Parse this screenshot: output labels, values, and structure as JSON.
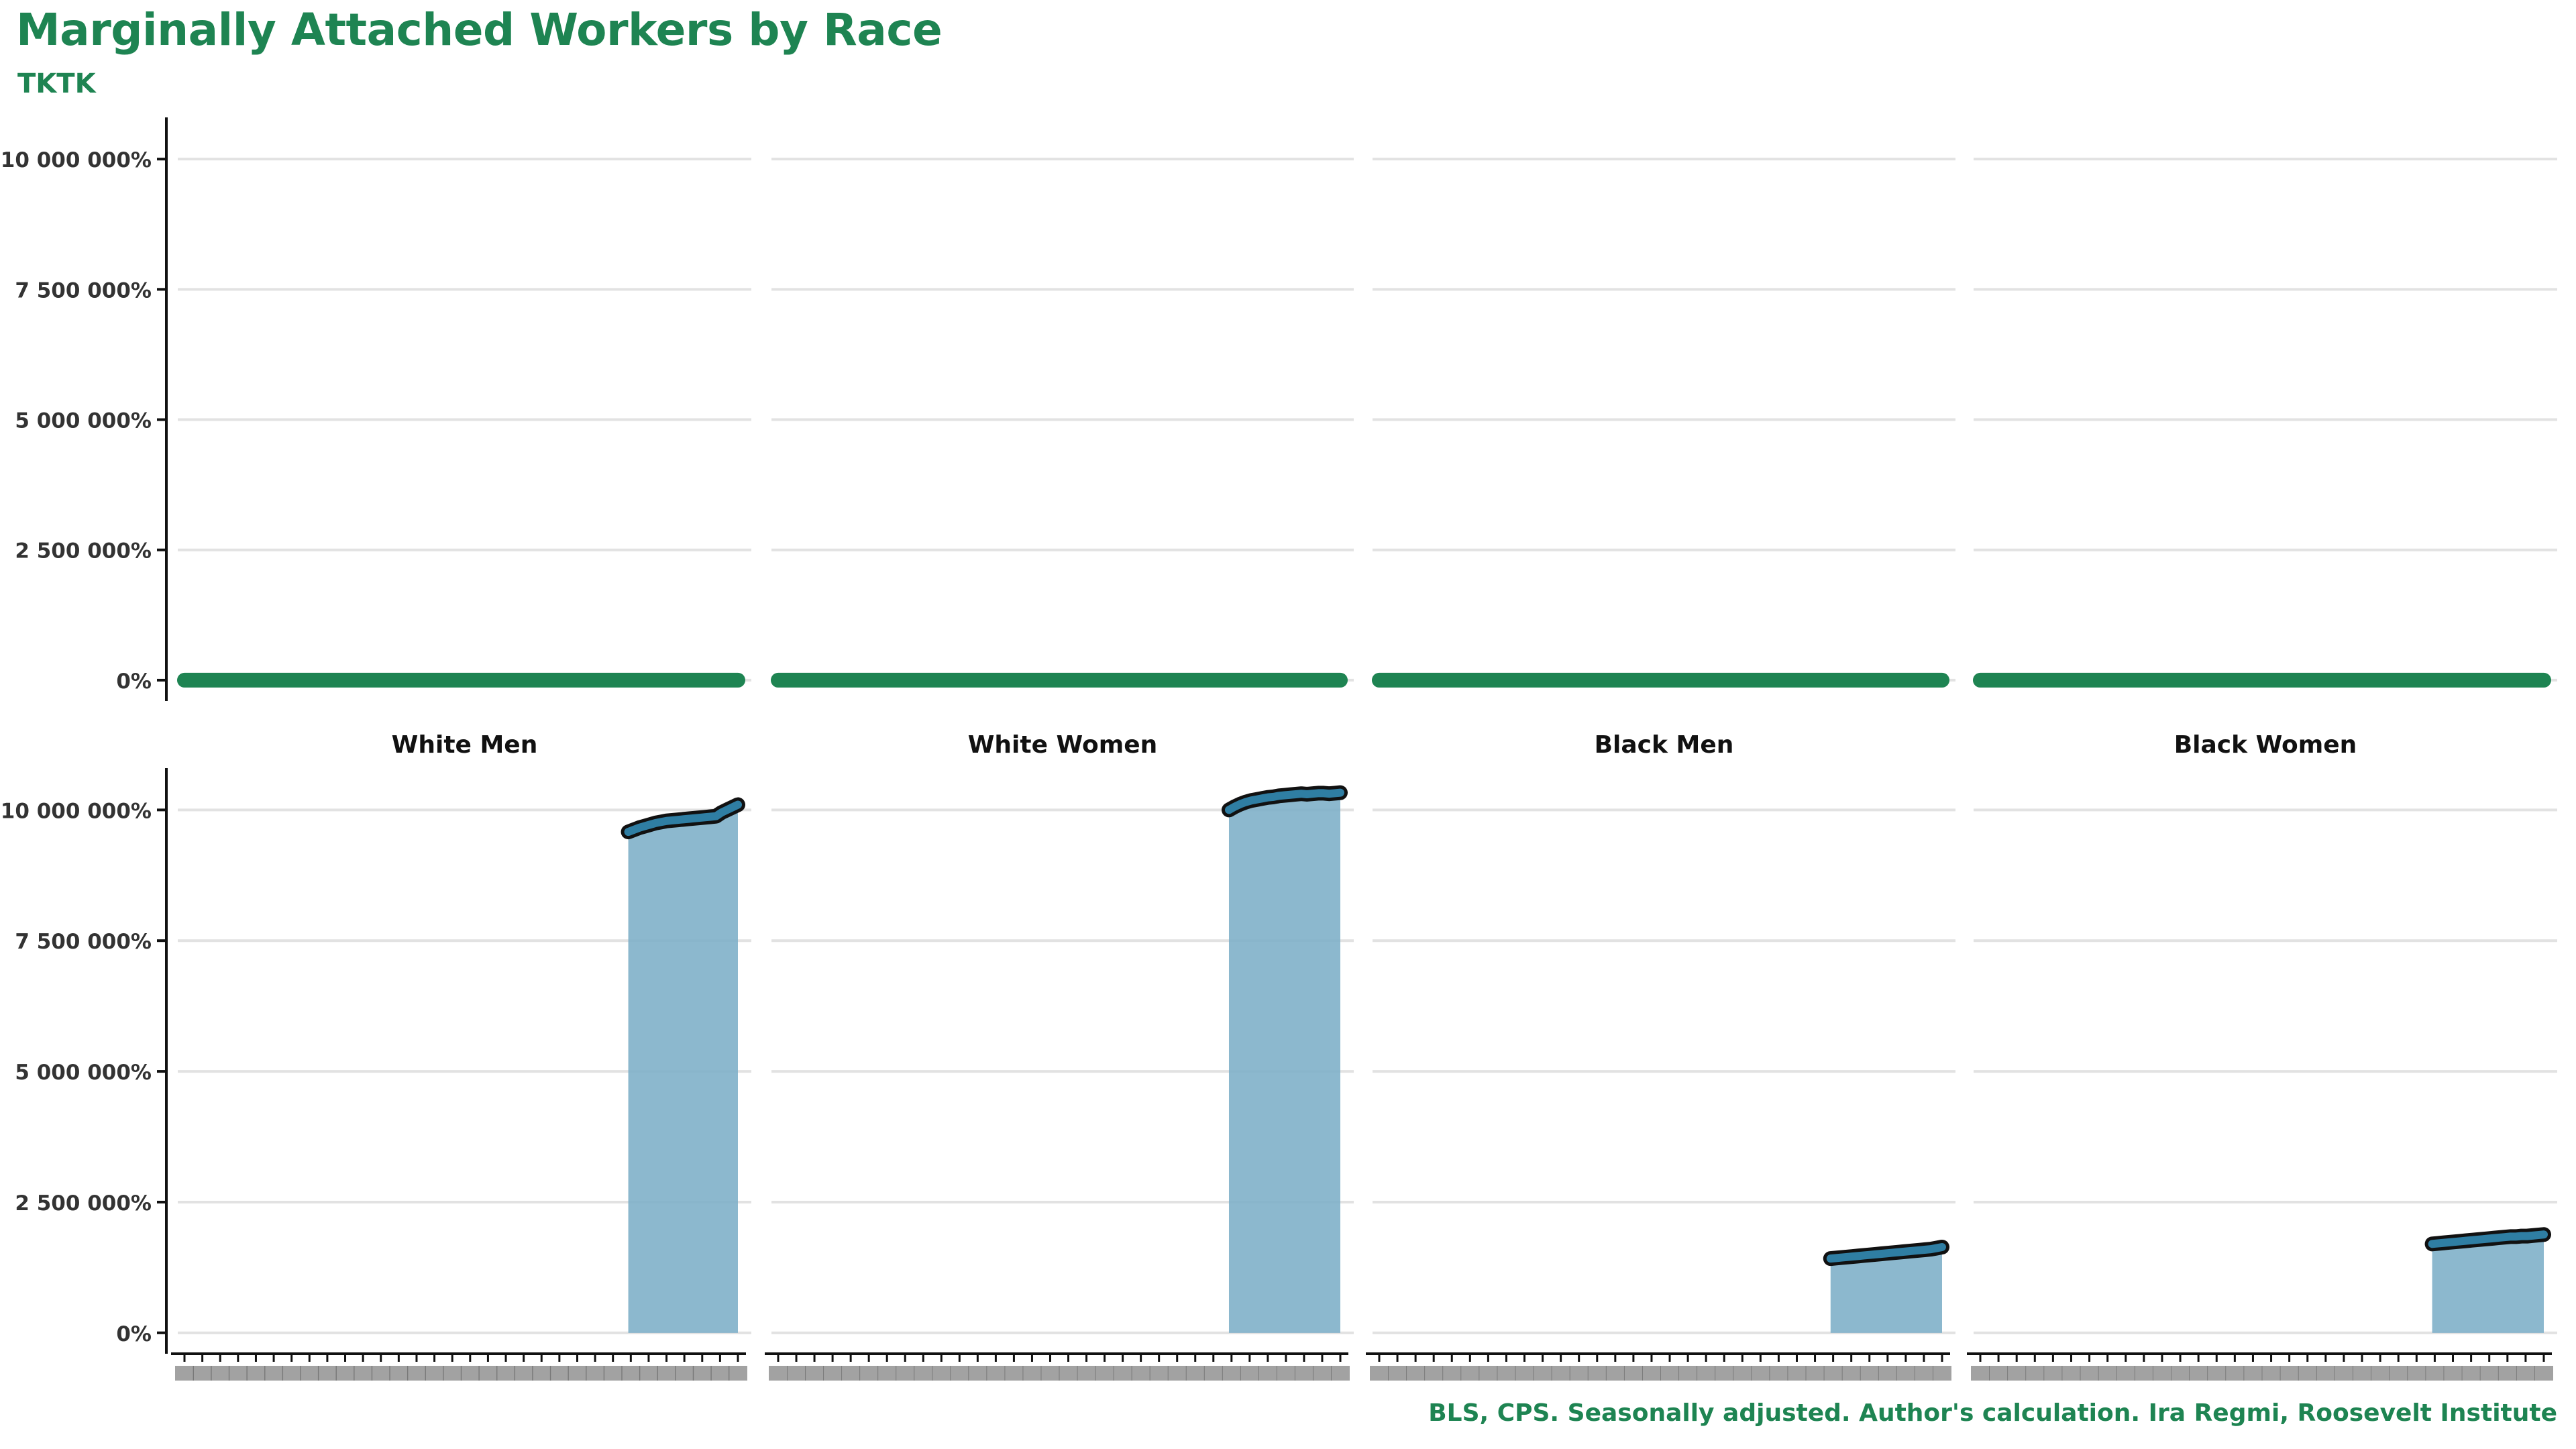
{
  "chart": {
    "title": "Marginally Attached Workers by Race",
    "subtitle": "TKTK",
    "caption": "BLS, CPS. Seasonally adjusted. Author's calculation. Ira Regmi, Roosevelt Institute"
  },
  "colors": {
    "brand_green": "#1e8452",
    "area_fill": "#7fb0c9",
    "line_fill": "#2f7ea3",
    "line_outline": "#111111",
    "grid": "#e2e2e2",
    "axis": "#111111",
    "tick_text": "#333333"
  },
  "chart_data": {
    "type": "area",
    "layout": "2 rows x 4 facet columns",
    "facets": [
      "White Men",
      "White Women",
      "Black Men",
      "Black Women"
    ],
    "y_tick_labels": [
      "0%",
      "2 500 000%",
      "5 000 000%",
      "7 500 000%",
      "10 000 000%"
    ],
    "ylim": [
      -400000,
      10800000
    ],
    "xlim": [
      0,
      106
    ],
    "x_index_note": "x axis labels overlap and are unreadable; series plotted by index",
    "x_tick_count": 32,
    "grid": "horizontal",
    "top_row": {
      "description": "green flat line at zero with overlapping unreadable labels",
      "series": [
        {
          "start": 0,
          "end": 106,
          "value": 0
        },
        {
          "start": 0,
          "end": 106,
          "value": 0
        },
        {
          "start": 0,
          "end": 106,
          "value": 0
        },
        {
          "start": 0,
          "end": 106,
          "value": 0
        }
      ]
    },
    "bottom_row": {
      "series": [
        {
          "start": 85,
          "end": 106,
          "values": [
            9580000,
            9620000,
            9660000,
            9690000,
            9720000,
            9750000,
            9770000,
            9790000,
            9800000,
            9810000,
            9820000,
            9830000,
            9840000,
            9850000,
            9860000,
            9870000,
            9880000,
            9950000,
            10000000,
            10050000,
            10100000
          ]
        },
        {
          "start": 85,
          "end": 106,
          "values": [
            10000000,
            10060000,
            10110000,
            10150000,
            10180000,
            10200000,
            10220000,
            10240000,
            10250000,
            10270000,
            10280000,
            10290000,
            10300000,
            10310000,
            10300000,
            10310000,
            10320000,
            10320000,
            10310000,
            10320000,
            10330000
          ]
        },
        {
          "start": 85,
          "end": 106,
          "values": [
            1420000,
            1430000,
            1440000,
            1450000,
            1460000,
            1470000,
            1480000,
            1490000,
            1500000,
            1510000,
            1520000,
            1530000,
            1540000,
            1550000,
            1560000,
            1570000,
            1580000,
            1590000,
            1600000,
            1620000,
            1640000
          ]
        },
        {
          "start": 85,
          "end": 106,
          "values": [
            1700000,
            1710000,
            1720000,
            1730000,
            1740000,
            1750000,
            1760000,
            1770000,
            1780000,
            1790000,
            1800000,
            1810000,
            1820000,
            1830000,
            1840000,
            1840000,
            1850000,
            1850000,
            1860000,
            1870000,
            1880000
          ]
        }
      ]
    }
  }
}
